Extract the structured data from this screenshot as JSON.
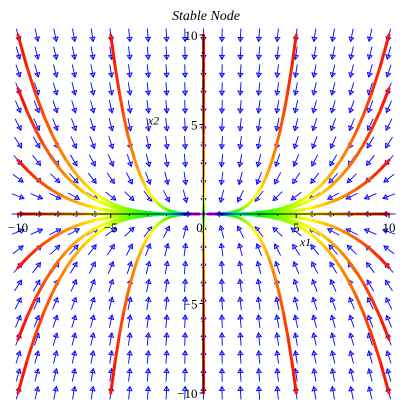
{
  "chart_data": {
    "type": "phase-portrait",
    "title": "Stable Node",
    "xlabel": "x1",
    "ylabel": "x2",
    "xlim": [
      -10,
      10
    ],
    "ylim": [
      -10,
      10
    ],
    "x_ticks": [
      "−10",
      "−5",
      "0",
      "5",
      "10"
    ],
    "y_ticks": [
      "−10",
      "−5",
      "5",
      "10"
    ],
    "field_color": "#0000ff",
    "axis_color": "#000000",
    "grid": false,
    "arrow_grid_step": 1,
    "system": "dx1/dt = -x1, dx2/dt = -4*x2",
    "color_map": "rainbow by time: red far from origin, through orange, yellow, green, cyan, to blue/magenta near origin",
    "trajectories": [
      {
        "start": [
          10,
          10
        ]
      },
      {
        "start": [
          10,
          7
        ]
      },
      {
        "start": [
          10,
          3
        ]
      },
      {
        "start": [
          5,
          10
        ]
      },
      {
        "start": [
          -10,
          10
        ]
      },
      {
        "start": [
          -10,
          7
        ]
      },
      {
        "start": [
          -10,
          3
        ]
      },
      {
        "start": [
          -5,
          10
        ]
      },
      {
        "start": [
          10,
          -10
        ]
      },
      {
        "start": [
          10,
          -7
        ]
      },
      {
        "start": [
          10,
          -3
        ]
      },
      {
        "start": [
          5,
          -10
        ]
      },
      {
        "start": [
          -10,
          -10
        ]
      },
      {
        "start": [
          -10,
          -7
        ]
      },
      {
        "start": [
          -10,
          -3
        ]
      },
      {
        "start": [
          -5,
          -10
        ]
      },
      {
        "start": [
          10,
          0
        ]
      },
      {
        "start": [
          -10,
          0
        ]
      },
      {
        "start": [
          0,
          10
        ]
      },
      {
        "start": [
          0,
          -10
        ]
      }
    ]
  }
}
